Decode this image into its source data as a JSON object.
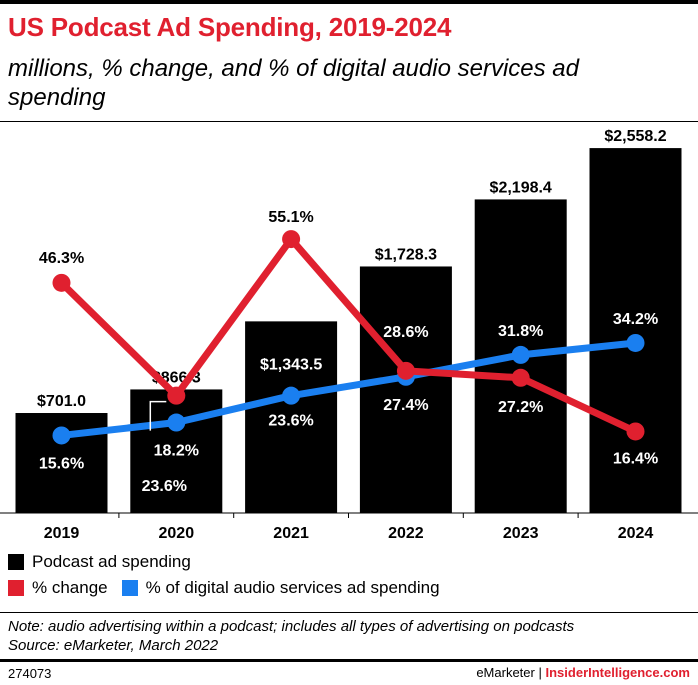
{
  "header": {
    "title": "US Podcast Ad Spending, 2019-2024",
    "subtitle": "millions, % change, and % of digital audio services ad spending"
  },
  "colors": {
    "title": "#e0202f",
    "bars": "#000000",
    "change_line": "#e0202f",
    "share_line": "#1a7ff0"
  },
  "chart_data": {
    "type": "bar",
    "categories": [
      "2019",
      "2020",
      "2021",
      "2022",
      "2023",
      "2024"
    ],
    "series": [
      {
        "name": "Podcast ad spending",
        "type": "bar",
        "values": [
          701.0,
          866.3,
          1343.5,
          1728.3,
          2198.4,
          2558.2
        ],
        "labels": [
          "$701.0",
          "$866.3",
          "$1,343.5",
          "$1,728.3",
          "$2,198.4",
          "$2,558.2"
        ]
      },
      {
        "name": "% change",
        "type": "line",
        "values": [
          46.3,
          23.6,
          55.1,
          28.6,
          27.2,
          16.4
        ],
        "labels": [
          "46.3%",
          "23.6%",
          "55.1%",
          "28.6%",
          "27.2%",
          "16.4%"
        ]
      },
      {
        "name": "% of digital audio services ad spending",
        "type": "line",
        "values": [
          15.6,
          18.2,
          23.6,
          27.4,
          31.8,
          34.2
        ],
        "labels": [
          "15.6%",
          "18.2%",
          "23.6%",
          "27.4%",
          "31.8%",
          "34.2%"
        ]
      }
    ],
    "bar_axis_range": [
      0,
      2700
    ],
    "percent_axis_range": [
      0,
      70
    ],
    "grid": false,
    "legend_position": "bottom-left"
  },
  "footer": {
    "note": "Note: audio advertising within a podcast; includes all types of advertising on podcasts",
    "source": "Source: eMarketer, March 2022",
    "chart_id": "274073",
    "publisher": "eMarketer",
    "separator": "|",
    "brand": "InsiderIntelligence.com"
  }
}
